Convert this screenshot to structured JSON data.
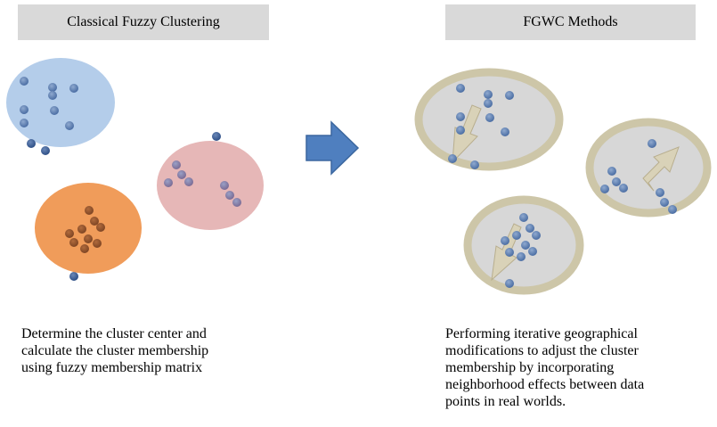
{
  "left_panel": {
    "title": "Classical Fuzzy Clustering",
    "caption": [
      "Determine the cluster center and",
      "calculate the cluster membership",
      "using fuzzy membership matrix"
    ]
  },
  "right_panel": {
    "title": "FGWC Methods",
    "caption": [
      "Performing iterative geographical",
      "modifications to adjust the cluster",
      "membership by incorporating",
      "neighborhood effects between data",
      "points in real worlds."
    ]
  },
  "colors": {
    "cluster_blue": "#b4cdea",
    "cluster_orange": "#f09c5a",
    "cluster_pink": "#e6b7b7",
    "point": "#4a6da3",
    "point_dark": "#2e4f86",
    "arrow": "#4f7fbf",
    "fgwc_fill": "#d7d7d7",
    "fgwc_ring": "#cdc6a8",
    "adjust_arrow": "#d9d2b8"
  }
}
